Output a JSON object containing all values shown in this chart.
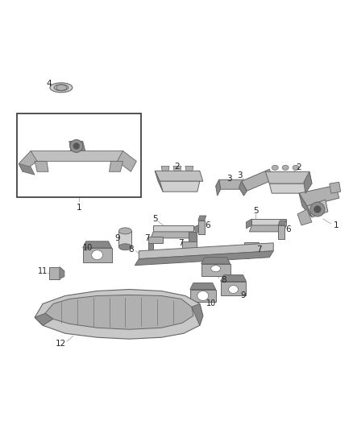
{
  "background_color": "#ffffff",
  "fig_width": 4.38,
  "fig_height": 5.33,
  "dpi": 100,
  "part_color": "#b0b0b0",
  "part_color_dark": "#888888",
  "part_color_light": "#d0d0d0",
  "line_color": "#666666",
  "label_color": "#222222",
  "label_fontsize": 7.5
}
